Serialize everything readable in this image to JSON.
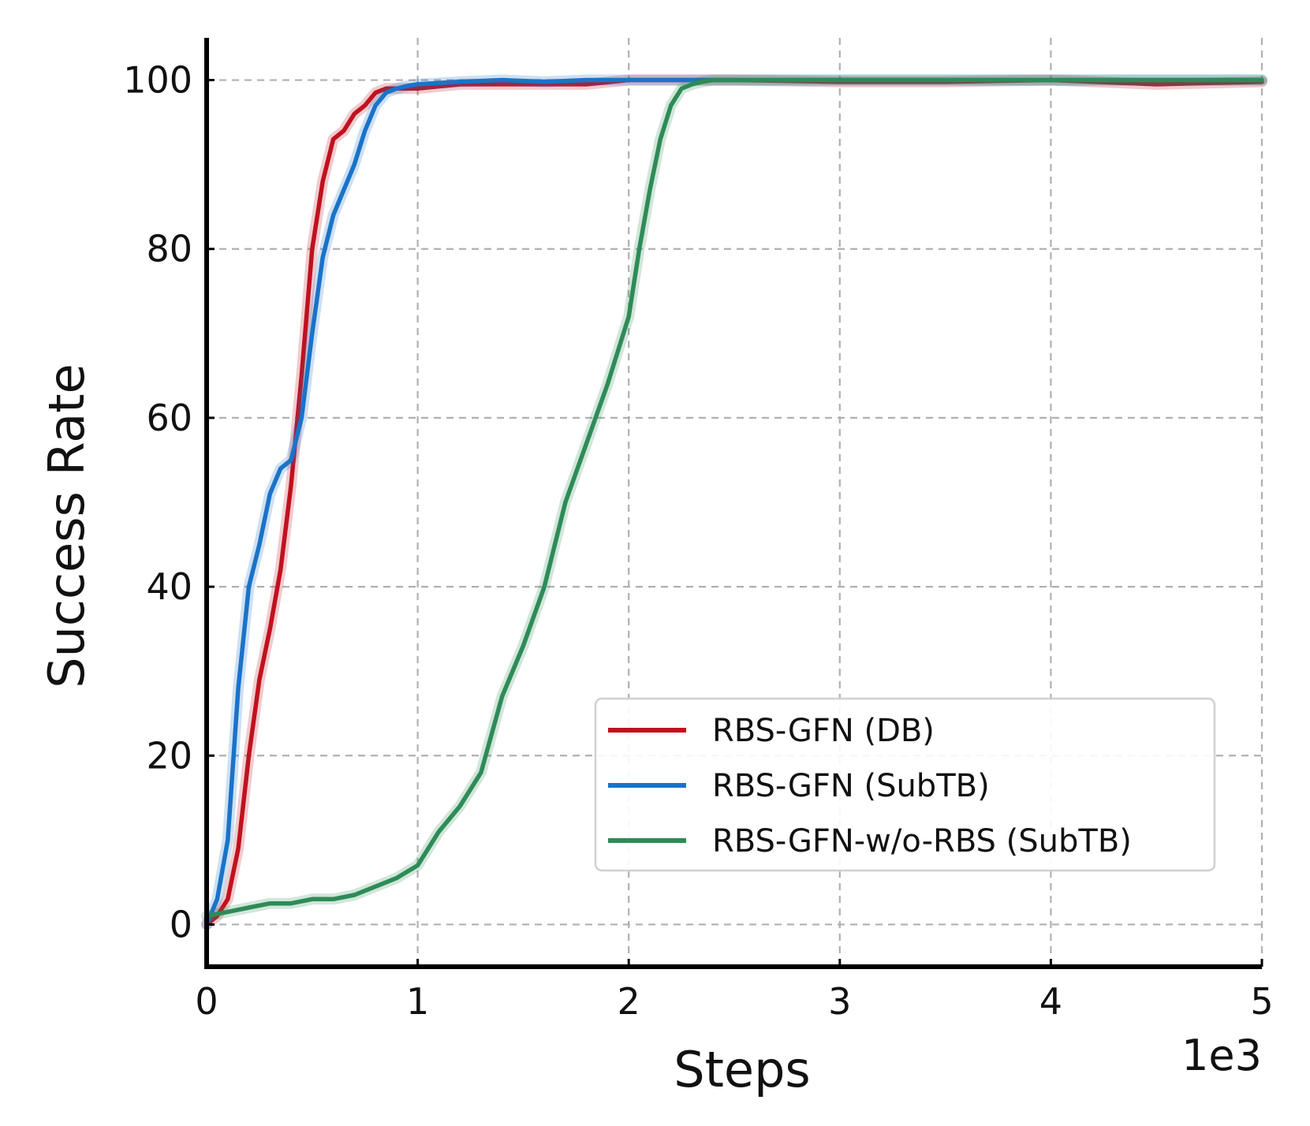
{
  "chart_data": {
    "type": "line",
    "title": "",
    "xlabel": "Steps",
    "ylabel": "Success Rate",
    "x_offset_text": "1e3",
    "xlim": [
      0,
      5
    ],
    "ylim": [
      -5,
      105
    ],
    "x_ticks": [
      0,
      1,
      2,
      3,
      4,
      5
    ],
    "x_tick_labels": [
      "0",
      "1",
      "2",
      "3",
      "4",
      "5"
    ],
    "y_ticks": [
      0,
      20,
      40,
      60,
      80,
      100
    ],
    "y_tick_labels": [
      "0",
      "20",
      "40",
      "60",
      "80",
      "100"
    ],
    "grid": true,
    "legend_position": "lower-right",
    "series": [
      {
        "name": "RBS-GFN (DB)",
        "color": "#c0111f",
        "x": [
          0,
          0.05,
          0.1,
          0.15,
          0.2,
          0.25,
          0.3,
          0.35,
          0.4,
          0.45,
          0.5,
          0.55,
          0.6,
          0.65,
          0.7,
          0.75,
          0.8,
          0.85,
          0.9,
          0.95,
          1.0,
          1.2,
          1.4,
          1.6,
          1.8,
          2.0,
          2.5,
          3.0,
          3.5,
          4.0,
          4.5,
          5.0
        ],
        "y": [
          0,
          1,
          3,
          9,
          20,
          29,
          35,
          42,
          52,
          65,
          80,
          88,
          93,
          94,
          96,
          97,
          98.5,
          99,
          99,
          99,
          99,
          99.5,
          99.5,
          99.5,
          99.5,
          100,
          100,
          99.8,
          99.8,
          100,
          99.5,
          99.8
        ]
      },
      {
        "name": "RBS-GFN (SubTB)",
        "color": "#1a73c8",
        "x": [
          0,
          0.05,
          0.1,
          0.15,
          0.2,
          0.25,
          0.3,
          0.35,
          0.4,
          0.45,
          0.5,
          0.55,
          0.6,
          0.65,
          0.7,
          0.75,
          0.8,
          0.85,
          0.9,
          0.95,
          1.0,
          1.2,
          1.4,
          1.6,
          1.8,
          2.0,
          2.5,
          3.0,
          3.5,
          4.0,
          4.5,
          5.0
        ],
        "y": [
          0,
          3,
          10,
          28,
          40,
          45,
          51,
          54,
          55,
          60,
          70,
          79,
          84,
          87,
          90,
          94,
          97,
          98.5,
          99,
          99.3,
          99.5,
          99.8,
          100,
          99.8,
          100,
          100,
          100,
          100,
          100,
          100,
          100,
          100
        ]
      },
      {
        "name": "RBS-GFN-w/o-RBS (SubTB)",
        "color": "#2e8b57",
        "x": [
          0,
          0.1,
          0.2,
          0.3,
          0.4,
          0.5,
          0.6,
          0.7,
          0.8,
          0.9,
          1.0,
          1.1,
          1.2,
          1.3,
          1.4,
          1.5,
          1.6,
          1.7,
          1.8,
          1.9,
          2.0,
          2.05,
          2.1,
          2.15,
          2.2,
          2.25,
          2.3,
          2.35,
          2.4,
          2.5,
          3.0,
          3.5,
          4.0,
          4.5,
          5.0
        ],
        "y": [
          1,
          1.5,
          2,
          2.5,
          2.5,
          3,
          3,
          3.5,
          4.5,
          5.5,
          7,
          11,
          14,
          18,
          27,
          33,
          40,
          50,
          57,
          64,
          72,
          80,
          87,
          93,
          97,
          99,
          99.5,
          99.8,
          100,
          100,
          100,
          100,
          100,
          100,
          100
        ]
      }
    ]
  }
}
